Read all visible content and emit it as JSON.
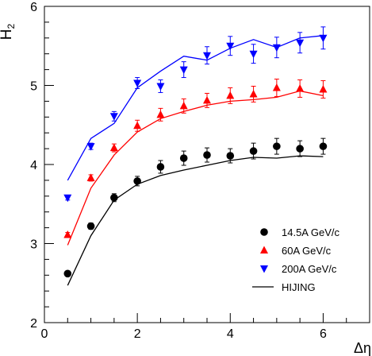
{
  "chart_data": {
    "type": "scatter",
    "xlabel": "Δη",
    "ylabel": "H",
    "ylabel_sub": "2",
    "xlim": [
      0,
      7
    ],
    "ylim": [
      2,
      6
    ],
    "xticks": [
      0,
      2,
      4,
      6
    ],
    "yticks": [
      2,
      3,
      4,
      5,
      6
    ],
    "grid": false,
    "legend_position": "bottom-right",
    "x": [
      0.5,
      1,
      1.5,
      2,
      2.5,
      3,
      3.5,
      4,
      4.5,
      5,
      5.5,
      6
    ],
    "series": [
      {
        "name": "14.5A GeV/c",
        "marker": "circle",
        "color": "#000000",
        "y": [
          2.62,
          3.22,
          3.58,
          3.79,
          3.97,
          4.08,
          4.12,
          4.11,
          4.17,
          4.23,
          4.2,
          4.23
        ],
        "err": [
          0.03,
          0.04,
          0.05,
          0.06,
          0.08,
          0.09,
          0.09,
          0.09,
          0.1,
          0.1,
          0.1,
          0.1
        ]
      },
      {
        "name": "60A GeV/c",
        "marker": "triangle-up",
        "color": "#ff0000",
        "y": [
          3.11,
          3.83,
          4.21,
          4.49,
          4.63,
          4.74,
          4.81,
          4.87,
          4.89,
          4.97,
          4.96,
          4.95
        ],
        "err": [
          0.03,
          0.04,
          0.05,
          0.07,
          0.08,
          0.09,
          0.09,
          0.1,
          0.1,
          0.11,
          0.11,
          0.11
        ]
      },
      {
        "name": "200A GeV/c",
        "marker": "triangle-down",
        "color": "#0000ff",
        "y": [
          3.58,
          4.23,
          4.61,
          5.03,
          4.99,
          5.2,
          5.38,
          5.5,
          5.4,
          5.48,
          5.54,
          5.6
        ],
        "err": [
          0.03,
          0.04,
          0.06,
          0.07,
          0.08,
          0.1,
          0.11,
          0.12,
          0.12,
          0.13,
          0.13,
          0.14
        ]
      }
    ],
    "hijing": {
      "name": "HIJING",
      "color_by_series": true,
      "lines": [
        {
          "color": "#000000",
          "y": [
            2.47,
            3.1,
            3.55,
            3.75,
            3.86,
            3.93,
            3.99,
            4.05,
            4.09,
            4.08,
            4.11,
            4.1
          ]
        },
        {
          "color": "#ff0000",
          "y": [
            2.98,
            3.7,
            4.12,
            4.41,
            4.58,
            4.67,
            4.75,
            4.8,
            4.82,
            4.85,
            4.93,
            4.87
          ]
        },
        {
          "color": "#0000ff",
          "y": [
            3.8,
            4.33,
            4.52,
            4.97,
            5.18,
            5.37,
            5.32,
            5.47,
            5.58,
            5.48,
            5.6,
            5.63
          ]
        }
      ],
      "legend_color": "#000000"
    }
  }
}
